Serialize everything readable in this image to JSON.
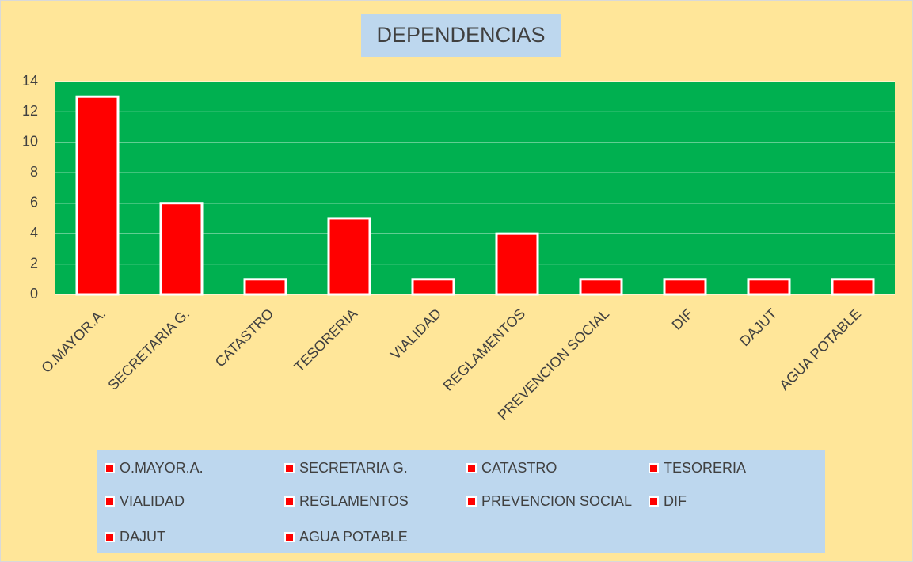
{
  "chart_data": {
    "type": "bar",
    "title": "DEPENDENCIAS",
    "categories": [
      "O.MAYOR.A.",
      "SECRETARIA G.",
      "CATASTRO",
      "TESORERIA",
      "VIALIDAD",
      "REGLAMENTOS",
      "PREVENCION SOCIAL",
      "DIF",
      "DAJUT",
      "AGUA POTABLE"
    ],
    "values": [
      13,
      6,
      1,
      5,
      1,
      4,
      1,
      1,
      1,
      1
    ],
    "color": "#ff0000",
    "ylim": [
      0,
      14
    ],
    "yticks": [
      0,
      2,
      4,
      6,
      8,
      10,
      12,
      14
    ],
    "grid": true,
    "legend": "bottom"
  }
}
